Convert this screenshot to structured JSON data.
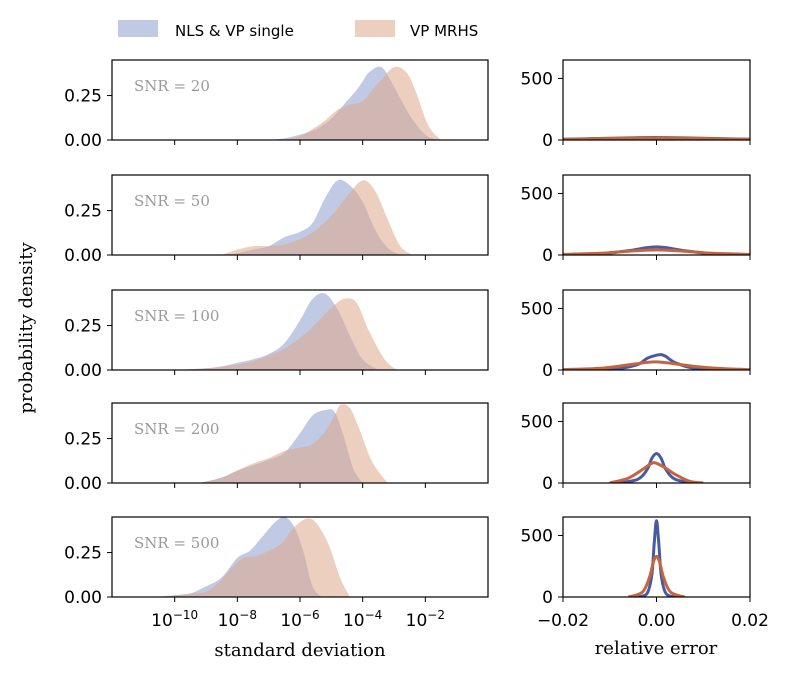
{
  "colors": {
    "nls": "#8e9fcf",
    "mrhs": "#dfa78c",
    "nls_line": "#4a5aa2",
    "mrhs_line": "#c5653f"
  },
  "legend": {
    "nls_label": "NLS & VP single",
    "mrhs_label": "VP MRHS"
  },
  "chart_data": {
    "type": "area",
    "ylabel": "probability density",
    "left": {
      "xlabel": "standard deviation",
      "xscale": "log10",
      "xlim_log10": [
        -12,
        0
      ],
      "xticks": [
        {
          "exp": -10,
          "base": "10",
          "sup": "−10"
        },
        {
          "exp": -8,
          "base": "10",
          "sup": "−8"
        },
        {
          "exp": -6,
          "base": "10",
          "sup": "−6"
        },
        {
          "exp": -4,
          "base": "10",
          "sup": "−4"
        },
        {
          "exp": -2,
          "base": "10",
          "sup": "−2"
        }
      ],
      "ylim": [
        0,
        0.45
      ],
      "yticks": [
        {
          "v": 0,
          "label": "0.00"
        },
        {
          "v": 0.25,
          "label": "0.25"
        }
      ]
    },
    "right": {
      "xlabel": "relative error",
      "xlim": [
        -0.02,
        0.02
      ],
      "xticks": [
        {
          "v": -0.02,
          "label": "−0.02"
        },
        {
          "v": 0.0,
          "label": "0.00"
        },
        {
          "v": 0.02,
          "label": "0.02"
        }
      ],
      "ylim": [
        0,
        650
      ],
      "yticks": [
        {
          "v": 0,
          "label": "0"
        },
        {
          "v": 500,
          "label": "500"
        }
      ]
    },
    "panels": [
      {
        "snr_label": "SNR = 20",
        "nls_std": {
          "x": [
            -7.0,
            -6.5,
            -6.0,
            -5.5,
            -5.0,
            -4.5,
            -4.2,
            -4.0,
            -3.8,
            -3.4,
            -3.0,
            -2.5,
            -2.0,
            -1.6
          ],
          "y": [
            0.0,
            0.01,
            0.03,
            0.06,
            0.12,
            0.22,
            0.28,
            0.33,
            0.38,
            0.41,
            0.3,
            0.14,
            0.03,
            0.0
          ]
        },
        "mrhs_std": {
          "x": [
            -6.8,
            -6.2,
            -5.8,
            -5.2,
            -4.8,
            -4.4,
            -4.0,
            -3.5,
            -3.0,
            -2.6,
            -2.3,
            -1.9,
            -1.5
          ],
          "y": [
            0.0,
            0.01,
            0.04,
            0.11,
            0.17,
            0.2,
            0.22,
            0.32,
            0.41,
            0.38,
            0.27,
            0.08,
            0.0
          ]
        },
        "nls_err": {
          "x": [
            -0.02,
            -0.01,
            0.0,
            0.01,
            0.02
          ],
          "y": [
            6,
            14,
            20,
            14,
            6
          ]
        },
        "mrhs_err": {
          "x": [
            -0.02,
            -0.01,
            0.0,
            0.01,
            0.02
          ],
          "y": [
            5,
            12,
            16,
            12,
            5
          ]
        }
      },
      {
        "snr_label": "SNR = 50",
        "nls_std": {
          "x": [
            -8.5,
            -8.0,
            -7.5,
            -7.0,
            -6.5,
            -6.0,
            -5.6,
            -5.2,
            -4.8,
            -4.4,
            -4.0,
            -3.6,
            -3.2,
            -2.8
          ],
          "y": [
            0.0,
            0.01,
            0.03,
            0.05,
            0.1,
            0.13,
            0.18,
            0.32,
            0.42,
            0.39,
            0.3,
            0.14,
            0.04,
            0.0
          ]
        },
        "mrhs_std": {
          "x": [
            -8.5,
            -8.0,
            -7.5,
            -7.0,
            -6.5,
            -6.0,
            -5.5,
            -5.0,
            -4.5,
            -4.0,
            -3.6,
            -3.2,
            -2.8,
            -2.4
          ],
          "y": [
            0.0,
            0.03,
            0.05,
            0.05,
            0.06,
            0.09,
            0.14,
            0.22,
            0.33,
            0.42,
            0.36,
            0.2,
            0.05,
            0.0
          ]
        },
        "nls_err": {
          "x": [
            -0.02,
            -0.012,
            -0.006,
            -0.002,
            0.0,
            0.002,
            0.006,
            0.012,
            0.02
          ],
          "y": [
            3,
            10,
            35,
            60,
            66,
            60,
            35,
            10,
            3
          ]
        },
        "mrhs_err": {
          "x": [
            -0.02,
            -0.012,
            -0.006,
            0.0,
            0.006,
            0.012,
            0.02
          ],
          "y": [
            5,
            14,
            30,
            42,
            30,
            14,
            5
          ]
        }
      },
      {
        "snr_label": "SNR = 100",
        "nls_std": {
          "x": [
            -10.0,
            -9.0,
            -8.5,
            -8.0,
            -7.5,
            -7.0,
            -6.5,
            -6.0,
            -5.6,
            -5.2,
            -4.8,
            -4.4,
            -4.0,
            -3.5
          ],
          "y": [
            0.0,
            0.01,
            0.02,
            0.04,
            0.06,
            0.09,
            0.15,
            0.28,
            0.4,
            0.43,
            0.34,
            0.19,
            0.06,
            0.0
          ]
        },
        "mrhs_std": {
          "x": [
            -10.0,
            -9.0,
            -8.5,
            -8.0,
            -7.5,
            -7.0,
            -6.5,
            -6.0,
            -5.5,
            -5.0,
            -4.6,
            -4.2,
            -3.8,
            -3.3,
            -2.9
          ],
          "y": [
            0.0,
            0.01,
            0.02,
            0.03,
            0.05,
            0.08,
            0.12,
            0.18,
            0.26,
            0.35,
            0.4,
            0.38,
            0.22,
            0.06,
            0.0
          ]
        },
        "nls_err": {
          "x": [
            -0.015,
            -0.008,
            -0.004,
            -0.002,
            0.0,
            0.001,
            0.002,
            0.004,
            0.008,
            0.015
          ],
          "y": [
            2,
            12,
            45,
            95,
            120,
            125,
            110,
            60,
            15,
            2
          ]
        },
        "mrhs_err": {
          "x": [
            -0.02,
            -0.012,
            -0.006,
            -0.002,
            0.0,
            0.003,
            0.008,
            0.014,
            0.02
          ],
          "y": [
            3,
            14,
            42,
            62,
            66,
            55,
            30,
            12,
            3
          ]
        }
      },
      {
        "snr_label": "SNR = 200",
        "nls_std": {
          "x": [
            -9.2,
            -8.5,
            -8.0,
            -7.5,
            -7.0,
            -6.5,
            -6.0,
            -5.6,
            -5.2,
            -4.9,
            -4.6,
            -4.3,
            -4.0
          ],
          "y": [
            0.0,
            0.03,
            0.07,
            0.1,
            0.13,
            0.17,
            0.28,
            0.38,
            0.41,
            0.4,
            0.26,
            0.08,
            0.0
          ]
        },
        "mrhs_std": {
          "x": [
            -9.2,
            -8.5,
            -8.0,
            -7.5,
            -7.0,
            -6.5,
            -6.0,
            -5.6,
            -5.2,
            -4.9,
            -4.7,
            -4.4,
            -4.1,
            -3.7,
            -3.2
          ],
          "y": [
            0.0,
            0.03,
            0.07,
            0.11,
            0.14,
            0.18,
            0.2,
            0.22,
            0.29,
            0.38,
            0.44,
            0.42,
            0.3,
            0.12,
            0.0
          ]
        },
        "nls_err": {
          "x": [
            -0.008,
            -0.004,
            -0.002,
            -0.001,
            0.0,
            0.001,
            0.002,
            0.004,
            0.008
          ],
          "y": [
            0,
            30,
            110,
            200,
            240,
            200,
            110,
            30,
            0
          ]
        },
        "mrhs_err": {
          "x": [
            -0.01,
            -0.006,
            -0.003,
            -0.001,
            0.0,
            0.002,
            0.004,
            0.007,
            0.01
          ],
          "y": [
            0,
            40,
            110,
            160,
            160,
            120,
            70,
            15,
            0
          ]
        }
      },
      {
        "snr_label": "SNR = 500",
        "nls_std": {
          "x": [
            -10.5,
            -10.0,
            -9.5,
            -9.0,
            -8.5,
            -8.0,
            -7.6,
            -7.2,
            -6.8,
            -6.5,
            -6.2,
            -5.9,
            -5.6,
            -5.3
          ],
          "y": [
            0.0,
            0.01,
            0.02,
            0.06,
            0.11,
            0.22,
            0.26,
            0.34,
            0.42,
            0.45,
            0.4,
            0.26,
            0.06,
            0.0
          ]
        },
        "mrhs_std": {
          "x": [
            -10.8,
            -10.0,
            -9.5,
            -9.0,
            -8.6,
            -8.2,
            -7.8,
            -7.4,
            -7.0,
            -6.6,
            -6.2,
            -5.8,
            -5.5,
            -5.1,
            -4.7,
            -4.4
          ],
          "y": [
            0.0,
            0.01,
            0.02,
            0.03,
            0.08,
            0.16,
            0.22,
            0.23,
            0.26,
            0.3,
            0.39,
            0.44,
            0.42,
            0.3,
            0.1,
            0.0
          ]
        },
        "nls_err": {
          "x": [
            -0.004,
            -0.002,
            -0.001,
            -0.0005,
            0.0,
            0.0005,
            0.001,
            0.002,
            0.004
          ],
          "y": [
            0,
            30,
            180,
            430,
            620,
            430,
            180,
            30,
            0
          ]
        },
        "mrhs_err": {
          "x": [
            -0.006,
            -0.003,
            -0.0015,
            -0.0007,
            0.0,
            0.0007,
            0.0015,
            0.003,
            0.006
          ],
          "y": [
            0,
            40,
            160,
            280,
            330,
            280,
            160,
            40,
            0
          ]
        }
      }
    ]
  }
}
